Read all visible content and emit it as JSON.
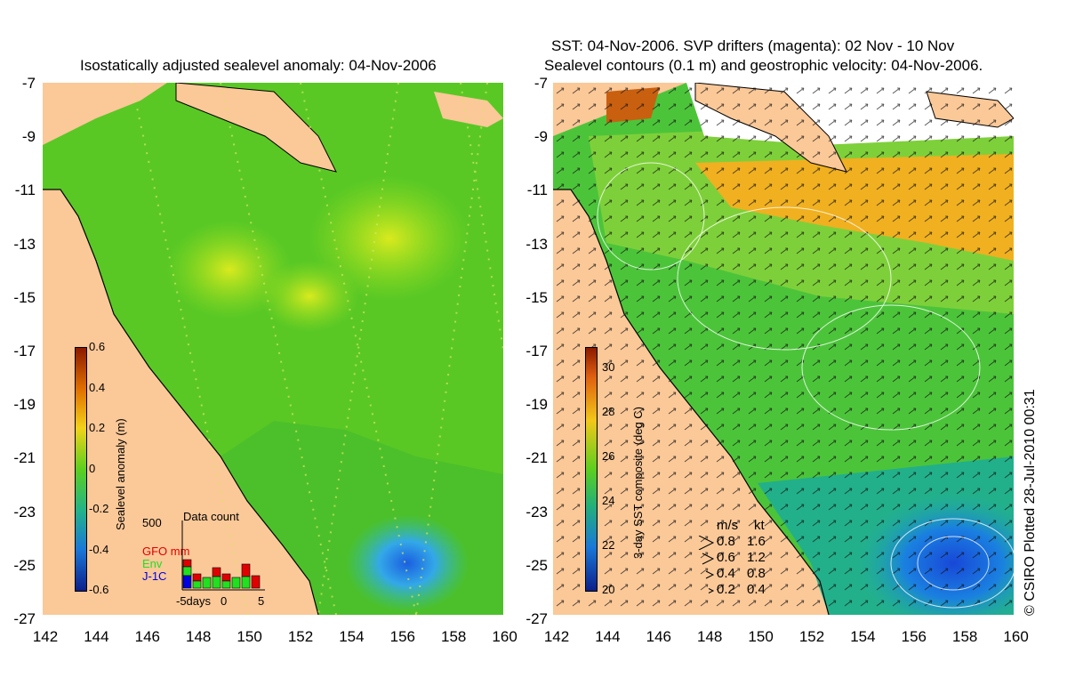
{
  "left_panel": {
    "title": "Isostatically adjusted sealevel anomaly: 04-Nov-2006",
    "colorbar": {
      "label": "Sealevel anomaly (m)",
      "ticks": [
        "0.6",
        "0.4",
        "0.2",
        "0",
        "-0.2",
        "-0.4",
        "-0.6"
      ],
      "colors": [
        "#8b1a00",
        "#e07000",
        "#f2d21a",
        "#5ccf1f",
        "#22b38a",
        "#1a78d8",
        "#0c1f8a"
      ]
    },
    "data_count": {
      "title": "Data count",
      "max_label": "500",
      "legend": [
        {
          "name": "GFO mm",
          "color": "#e00000"
        },
        {
          "name": "Env",
          "color": "#20e020"
        },
        {
          "name": "J-1C",
          "color": "#0000e0"
        }
      ],
      "x_labels": [
        "-5days",
        "0",
        "5"
      ]
    }
  },
  "right_panel": {
    "title_line1": "SST: 04-Nov-2006. SVP drifters (magenta): 02 Nov - 10 Nov",
    "title_line2": "Sealevel contours (0.1 m) and geostrophic velocity: 04-Nov-2006.",
    "colorbar": {
      "label": "3-day SST composite (deg C)",
      "ticks": [
        "30",
        "28",
        "26",
        "24",
        "22",
        "20"
      ],
      "colors": [
        "#8b1a00",
        "#f2c81a",
        "#5ccf1f",
        "#23b07a",
        "#1a78d8",
        "#0c1f8a"
      ]
    },
    "velocity_legend": {
      "header_ms": "m/s",
      "header_kt": "kt",
      "rows": [
        {
          "ms": "0.8",
          "kt": "1.6"
        },
        {
          "ms": "0.6",
          "kt": "1.2"
        },
        {
          "ms": "0.4",
          "kt": "0.8"
        },
        {
          "ms": "0.2",
          "kt": "0.4"
        }
      ]
    },
    "credit": "© CSIRO Plotted 28-Jul-2010 00:31"
  },
  "axes": {
    "y_ticks": [
      "-7",
      "-9",
      "-11",
      "-13",
      "-15",
      "-17",
      "-19",
      "-21",
      "-23",
      "-25",
      "-27"
    ],
    "x_ticks": [
      "142",
      "144",
      "146",
      "148",
      "150",
      "152",
      "154",
      "156",
      "158",
      "160"
    ]
  },
  "colors": {
    "land": "#fbc898",
    "coast": "#000000"
  }
}
